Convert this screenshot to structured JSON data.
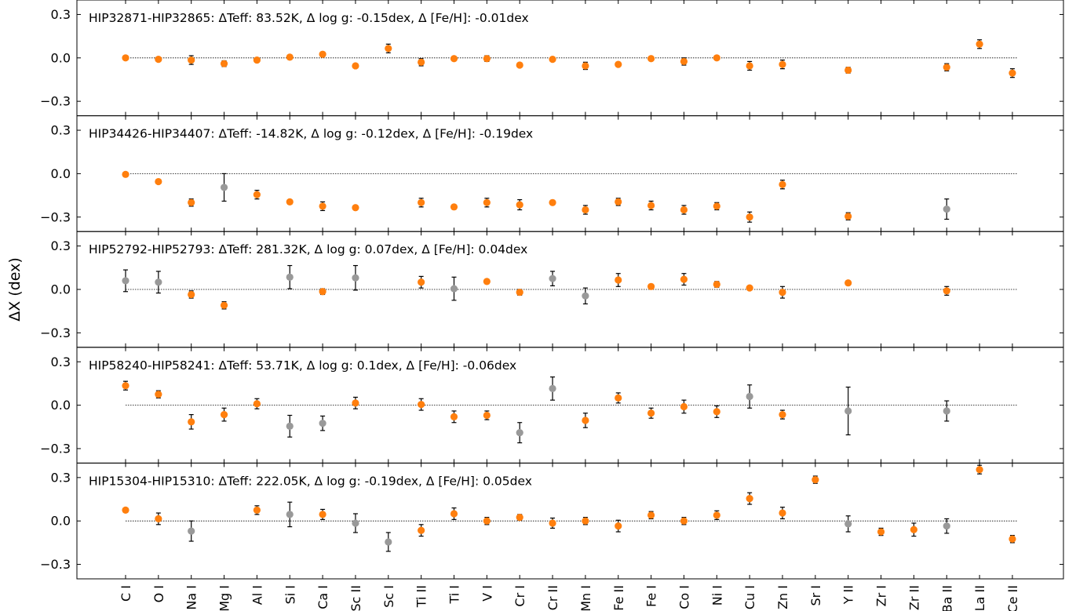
{
  "chart_data": {
    "type": "scatter",
    "ylabel": "ΔX (dex)",
    "ylim": [
      -0.4,
      0.4
    ],
    "yticks": [
      0.3,
      0.0,
      -0.3
    ],
    "ytick_labels": [
      "0.3",
      "0.0",
      "−0.3"
    ],
    "categories": [
      "C I",
      "O I",
      "Na I",
      "Mg I",
      "Al I",
      "Si I",
      "Ca I",
      "Sc II",
      "Sc I",
      "Ti II",
      "Ti I",
      "V I",
      "Cr I",
      "Cr II",
      "Mn I",
      "Fe II",
      "Fe I",
      "Co I",
      "Ni I",
      "Cu I",
      "Zn I",
      "Sr I",
      "Y II",
      "Zr I",
      "Zr II",
      "Ba II",
      "La II",
      "Ce II"
    ],
    "colors": {
      "primary": "#ff7f0e",
      "secondary": "#999999",
      "error": "#000000",
      "reference": "#000000"
    },
    "panels": [
      {
        "title": "HIP32871-HIP32865: ΔTeff: 83.52K, Δ log g: -0.15dex, Δ [Fe/H]: -0.01dex",
        "points": [
          {
            "el": "C I",
            "y": 0.0,
            "err": 0.01,
            "color": "orange"
          },
          {
            "el": "O I",
            "y": -0.01,
            "err": 0.015,
            "color": "orange"
          },
          {
            "el": "Na I",
            "y": -0.015,
            "err": 0.03,
            "color": "orange"
          },
          {
            "el": "Mg I",
            "y": -0.04,
            "err": 0.02,
            "color": "orange"
          },
          {
            "el": "Al I",
            "y": -0.015,
            "err": 0.015,
            "color": "orange"
          },
          {
            "el": "Si I",
            "y": 0.005,
            "err": 0.015,
            "color": "orange"
          },
          {
            "el": "Ca I",
            "y": 0.025,
            "err": 0.015,
            "color": "orange"
          },
          {
            "el": "Sc II",
            "y": -0.055,
            "err": 0.01,
            "color": "orange"
          },
          {
            "el": "Sc I",
            "y": 0.065,
            "err": 0.03,
            "color": "orange"
          },
          {
            "el": "Ti II",
            "y": -0.03,
            "err": 0.025,
            "color": "orange"
          },
          {
            "el": "Ti I",
            "y": -0.005,
            "err": 0.015,
            "color": "orange"
          },
          {
            "el": "V I",
            "y": -0.005,
            "err": 0.02,
            "color": "orange"
          },
          {
            "el": "Cr I",
            "y": -0.05,
            "err": 0.015,
            "color": "orange"
          },
          {
            "el": "Cr II",
            "y": -0.01,
            "err": 0.015,
            "color": "orange"
          },
          {
            "el": "Mn I",
            "y": -0.055,
            "err": 0.025,
            "color": "orange"
          },
          {
            "el": "Fe II",
            "y": -0.045,
            "err": 0.015,
            "color": "orange"
          },
          {
            "el": "Fe I",
            "y": -0.005,
            "err": 0.01,
            "color": "orange"
          },
          {
            "el": "Co I",
            "y": -0.025,
            "err": 0.025,
            "color": "orange"
          },
          {
            "el": "Ni I",
            "y": 0.0,
            "err": 0.012,
            "color": "orange"
          },
          {
            "el": "Cu I",
            "y": -0.055,
            "err": 0.03,
            "color": "orange"
          },
          {
            "el": "Zn I",
            "y": -0.045,
            "err": 0.03,
            "color": "orange"
          },
          {
            "el": "Y II",
            "y": -0.085,
            "err": 0.02,
            "color": "orange"
          },
          {
            "el": "Ba II",
            "y": -0.065,
            "err": 0.025,
            "color": "orange"
          },
          {
            "el": "La II",
            "y": 0.095,
            "err": 0.03,
            "color": "orange"
          },
          {
            "el": "Ce II",
            "y": -0.105,
            "err": 0.03,
            "color": "orange"
          }
        ]
      },
      {
        "title": "HIP34426-HIP34407: ΔTeff: -14.82K, Δ log g: -0.12dex, Δ [Fe/H]: -0.19dex",
        "points": [
          {
            "el": "C I",
            "y": -0.005,
            "err": 0.01,
            "color": "orange"
          },
          {
            "el": "O I",
            "y": -0.055,
            "err": 0.012,
            "color": "orange"
          },
          {
            "el": "Na I",
            "y": -0.2,
            "err": 0.025,
            "color": "orange"
          },
          {
            "el": "Mg I",
            "y": -0.095,
            "err": 0.095,
            "color": "grey"
          },
          {
            "el": "Al I",
            "y": -0.145,
            "err": 0.03,
            "color": "orange"
          },
          {
            "el": "Si I",
            "y": -0.195,
            "err": 0.015,
            "color": "orange"
          },
          {
            "el": "Ca I",
            "y": -0.225,
            "err": 0.03,
            "color": "orange"
          },
          {
            "el": "Sc II",
            "y": -0.235,
            "err": 0.015,
            "color": "orange"
          },
          {
            "el": "Ti II",
            "y": -0.2,
            "err": 0.03,
            "color": "orange"
          },
          {
            "el": "Ti I",
            "y": -0.23,
            "err": 0.015,
            "color": "orange"
          },
          {
            "el": "V I",
            "y": -0.2,
            "err": 0.03,
            "color": "orange"
          },
          {
            "el": "Cr I",
            "y": -0.215,
            "err": 0.035,
            "color": "orange"
          },
          {
            "el": "Cr II",
            "y": -0.2,
            "err": 0.015,
            "color": "orange"
          },
          {
            "el": "Mn I",
            "y": -0.25,
            "err": 0.03,
            "color": "orange"
          },
          {
            "el": "Fe II",
            "y": -0.195,
            "err": 0.025,
            "color": "orange"
          },
          {
            "el": "Fe I",
            "y": -0.22,
            "err": 0.03,
            "color": "orange"
          },
          {
            "el": "Co I",
            "y": -0.25,
            "err": 0.03,
            "color": "orange"
          },
          {
            "el": "Ni I",
            "y": -0.225,
            "err": 0.025,
            "color": "orange"
          },
          {
            "el": "Cu I",
            "y": -0.3,
            "err": 0.035,
            "color": "orange"
          },
          {
            "el": "Zn I",
            "y": -0.075,
            "err": 0.03,
            "color": "orange"
          },
          {
            "el": "Y II",
            "y": -0.295,
            "err": 0.025,
            "color": "orange"
          },
          {
            "el": "Ba II",
            "y": -0.245,
            "err": 0.07,
            "color": "grey"
          }
        ]
      },
      {
        "title": "HIP52792-HIP52793: ΔTeff: 281.32K, Δ log g: 0.07dex, Δ [Fe/H]: 0.04dex",
        "points": [
          {
            "el": "C I",
            "y": 0.06,
            "err": 0.075,
            "color": "grey"
          },
          {
            "el": "O I",
            "y": 0.05,
            "err": 0.075,
            "color": "grey"
          },
          {
            "el": "Na I",
            "y": -0.035,
            "err": 0.025,
            "color": "orange"
          },
          {
            "el": "Mg I",
            "y": -0.11,
            "err": 0.025,
            "color": "orange"
          },
          {
            "el": "Si I",
            "y": 0.085,
            "err": 0.08,
            "color": "grey"
          },
          {
            "el": "Ca I",
            "y": -0.015,
            "err": 0.02,
            "color": "orange"
          },
          {
            "el": "Sc II",
            "y": 0.08,
            "err": 0.085,
            "color": "grey"
          },
          {
            "el": "Ti II",
            "y": 0.05,
            "err": 0.04,
            "color": "orange"
          },
          {
            "el": "Ti I",
            "y": 0.005,
            "err": 0.08,
            "color": "grey"
          },
          {
            "el": "V I",
            "y": 0.055,
            "err": 0.01,
            "color": "orange"
          },
          {
            "el": "Cr I",
            "y": -0.02,
            "err": 0.02,
            "color": "orange"
          },
          {
            "el": "Cr II",
            "y": 0.075,
            "err": 0.05,
            "color": "grey"
          },
          {
            "el": "Mn I",
            "y": -0.045,
            "err": 0.055,
            "color": "grey"
          },
          {
            "el": "Fe II",
            "y": 0.065,
            "err": 0.045,
            "color": "orange"
          },
          {
            "el": "Fe I",
            "y": 0.02,
            "err": 0.015,
            "color": "orange"
          },
          {
            "el": "Co I",
            "y": 0.07,
            "err": 0.04,
            "color": "orange"
          },
          {
            "el": "Ni I",
            "y": 0.035,
            "err": 0.02,
            "color": "orange"
          },
          {
            "el": "Cu I",
            "y": 0.01,
            "err": 0.01,
            "color": "orange"
          },
          {
            "el": "Zn I",
            "y": -0.02,
            "err": 0.04,
            "color": "orange"
          },
          {
            "el": "Y II",
            "y": 0.045,
            "err": 0.015,
            "color": "orange"
          },
          {
            "el": "Ba II",
            "y": -0.01,
            "err": 0.03,
            "color": "orange"
          }
        ]
      },
      {
        "title": "HIP58240-HIP58241: ΔTeff: 53.71K, Δ log g: 0.1dex, Δ [Fe/H]: -0.06dex",
        "points": [
          {
            "el": "C I",
            "y": 0.135,
            "err": 0.03,
            "color": "orange"
          },
          {
            "el": "O I",
            "y": 0.075,
            "err": 0.025,
            "color": "orange"
          },
          {
            "el": "Na I",
            "y": -0.115,
            "err": 0.05,
            "color": "orange"
          },
          {
            "el": "Mg I",
            "y": -0.065,
            "err": 0.045,
            "color": "orange"
          },
          {
            "el": "Al I",
            "y": 0.01,
            "err": 0.035,
            "color": "orange"
          },
          {
            "el": "Si I",
            "y": -0.145,
            "err": 0.075,
            "color": "grey"
          },
          {
            "el": "Ca I",
            "y": -0.125,
            "err": 0.05,
            "color": "grey"
          },
          {
            "el": "Sc II",
            "y": 0.015,
            "err": 0.04,
            "color": "orange"
          },
          {
            "el": "Ti II",
            "y": 0.005,
            "err": 0.04,
            "color": "orange"
          },
          {
            "el": "Ti I",
            "y": -0.08,
            "err": 0.04,
            "color": "orange"
          },
          {
            "el": "V I",
            "y": -0.07,
            "err": 0.03,
            "color": "orange"
          },
          {
            "el": "Cr I",
            "y": -0.19,
            "err": 0.07,
            "color": "grey"
          },
          {
            "el": "Cr II",
            "y": 0.115,
            "err": 0.08,
            "color": "grey"
          },
          {
            "el": "Mn I",
            "y": -0.105,
            "err": 0.05,
            "color": "orange"
          },
          {
            "el": "Fe II",
            "y": 0.05,
            "err": 0.035,
            "color": "orange"
          },
          {
            "el": "Fe I",
            "y": -0.055,
            "err": 0.035,
            "color": "orange"
          },
          {
            "el": "Co I",
            "y": -0.01,
            "err": 0.045,
            "color": "orange"
          },
          {
            "el": "Ni I",
            "y": -0.045,
            "err": 0.04,
            "color": "orange"
          },
          {
            "el": "Cu I",
            "y": 0.06,
            "err": 0.08,
            "color": "grey"
          },
          {
            "el": "Zn I",
            "y": -0.065,
            "err": 0.03,
            "color": "orange"
          },
          {
            "el": "Y II",
            "y": -0.04,
            "err": 0.165,
            "color": "grey"
          },
          {
            "el": "Ba II",
            "y": -0.04,
            "err": 0.07,
            "color": "grey"
          }
        ]
      },
      {
        "title": "HIP15304-HIP15310: ΔTeff: 222.05K, Δ log g: -0.19dex, Δ [Fe/H]: 0.05dex",
        "points": [
          {
            "el": "C I",
            "y": 0.075,
            "err": 0.015,
            "color": "orange"
          },
          {
            "el": "O I",
            "y": 0.015,
            "err": 0.04,
            "color": "orange"
          },
          {
            "el": "Na I",
            "y": -0.07,
            "err": 0.07,
            "color": "grey"
          },
          {
            "el": "Al I",
            "y": 0.075,
            "err": 0.03,
            "color": "orange"
          },
          {
            "el": "Si I",
            "y": 0.045,
            "err": 0.085,
            "color": "grey"
          },
          {
            "el": "Ca I",
            "y": 0.045,
            "err": 0.035,
            "color": "orange"
          },
          {
            "el": "Sc II",
            "y": -0.015,
            "err": 0.065,
            "color": "grey"
          },
          {
            "el": "Sc I",
            "y": -0.145,
            "err": 0.065,
            "color": "grey"
          },
          {
            "el": "Ti II",
            "y": -0.065,
            "err": 0.04,
            "color": "orange"
          },
          {
            "el": "Ti I",
            "y": 0.05,
            "err": 0.04,
            "color": "orange"
          },
          {
            "el": "V I",
            "y": 0.0,
            "err": 0.025,
            "color": "orange"
          },
          {
            "el": "Cr I",
            "y": 0.025,
            "err": 0.02,
            "color": "orange"
          },
          {
            "el": "Cr II",
            "y": -0.015,
            "err": 0.035,
            "color": "orange"
          },
          {
            "el": "Mn I",
            "y": 0.0,
            "err": 0.025,
            "color": "orange"
          },
          {
            "el": "Fe II",
            "y": -0.035,
            "err": 0.04,
            "color": "orange"
          },
          {
            "el": "Fe I",
            "y": 0.04,
            "err": 0.025,
            "color": "orange"
          },
          {
            "el": "Co I",
            "y": 0.0,
            "err": 0.025,
            "color": "orange"
          },
          {
            "el": "Ni I",
            "y": 0.04,
            "err": 0.03,
            "color": "orange"
          },
          {
            "el": "Cu I",
            "y": 0.155,
            "err": 0.04,
            "color": "orange"
          },
          {
            "el": "Zn I",
            "y": 0.055,
            "err": 0.04,
            "color": "orange"
          },
          {
            "el": "Sr I",
            "y": 0.285,
            "err": 0.025,
            "color": "orange"
          },
          {
            "el": "Y II",
            "y": -0.02,
            "err": 0.055,
            "color": "grey"
          },
          {
            "el": "Zr I",
            "y": -0.075,
            "err": 0.025,
            "color": "orange"
          },
          {
            "el": "Zr II",
            "y": -0.06,
            "err": 0.045,
            "color": "orange"
          },
          {
            "el": "Ba II",
            "y": -0.035,
            "err": 0.05,
            "color": "grey"
          },
          {
            "el": "La II",
            "y": 0.355,
            "err": 0.03,
            "color": "orange"
          },
          {
            "el": "Ce II",
            "y": -0.125,
            "err": 0.025,
            "color": "orange"
          }
        ]
      }
    ]
  }
}
